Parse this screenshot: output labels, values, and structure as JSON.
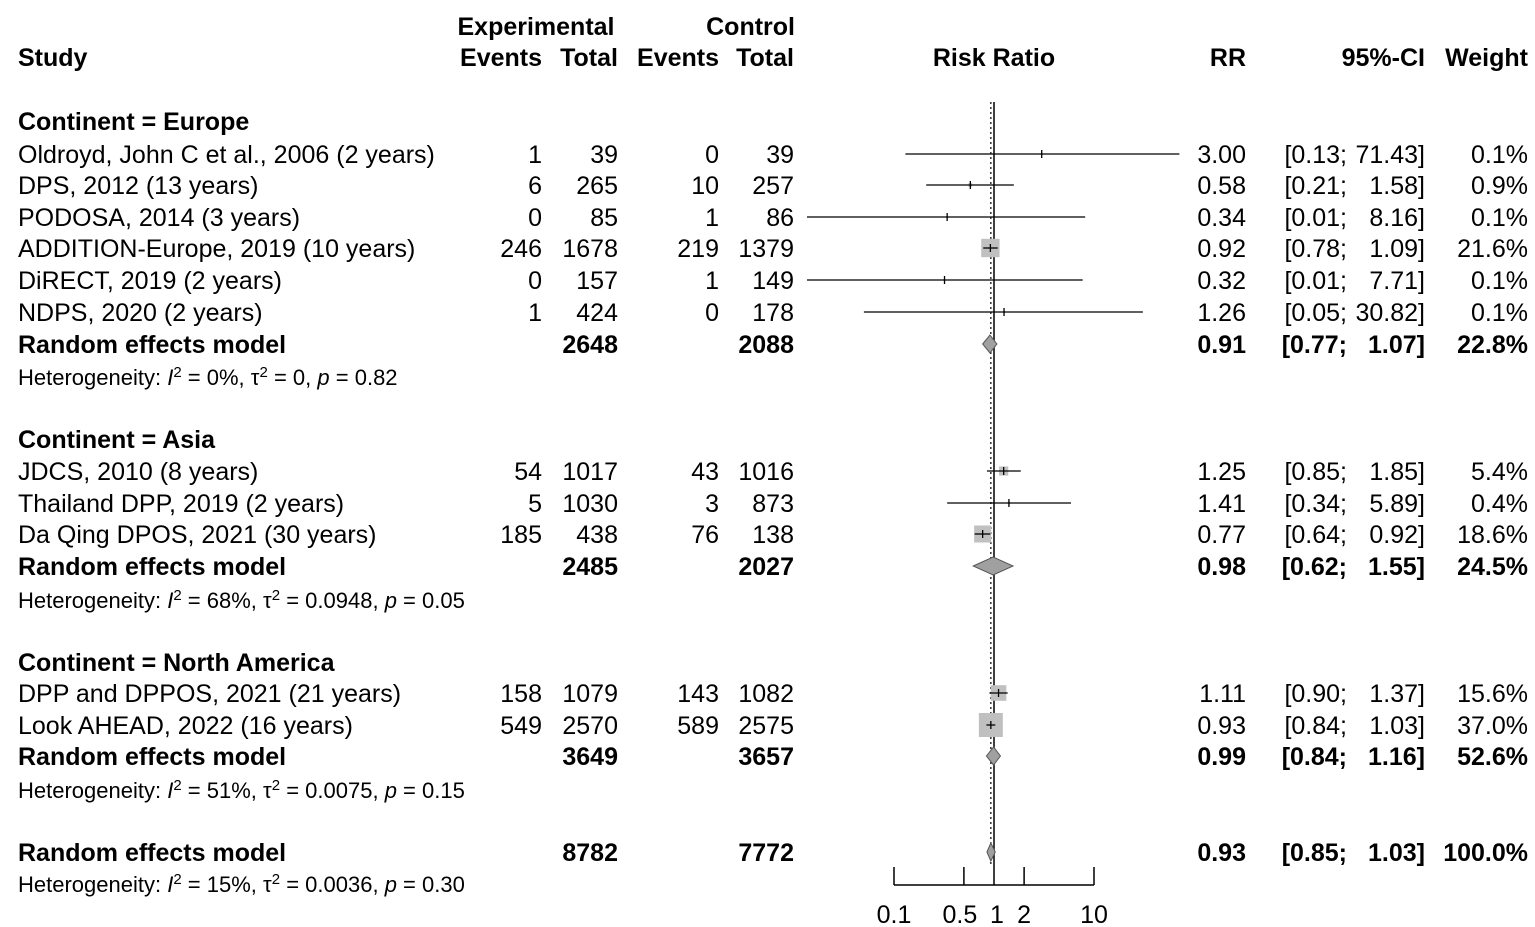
{
  "headers": {
    "study": "Study",
    "experimental": "Experimental",
    "control": "Control",
    "events": "Events",
    "total": "Total",
    "plot": "Risk Ratio",
    "rr": "RR",
    "ci": "95%-CI",
    "weight": "Weight"
  },
  "chart_data": {
    "type": "forest",
    "measure": "Risk Ratio",
    "x_scale": "log",
    "null_value": 1,
    "pooled_estimate": 0.93,
    "xticks": [
      0.1,
      0.5,
      1,
      2,
      10
    ],
    "xtick_labels": [
      "0.1",
      "0.5",
      "1",
      "2",
      "10"
    ],
    "groups": [
      {
        "label": "Continent = Europe",
        "studies": [
          {
            "name": "Oldroyd, John C et al., 2006 (2 years)",
            "e_events": "1",
            "e_total": "39",
            "c_events": "0",
            "c_total": "39",
            "rr": 3.0,
            "lo": 0.13,
            "hi": 71.43,
            "rr_text": "3.00",
            "ci_lo_text": "[0.13;",
            "ci_hi_text": "71.43]",
            "weight": 0.1,
            "weight_text": "0.1%"
          },
          {
            "name": "DPS, 2012 (13 years)",
            "e_events": "6",
            "e_total": "265",
            "c_events": "10",
            "c_total": "257",
            "rr": 0.58,
            "lo": 0.21,
            "hi": 1.58,
            "rr_text": "0.58",
            "ci_lo_text": "[0.21;",
            "ci_hi_text": "1.58]",
            "weight": 0.9,
            "weight_text": "0.9%"
          },
          {
            "name": "PODOSA, 2014 (3 years)",
            "e_events": "0",
            "e_total": "85",
            "c_events": "1",
            "c_total": "86",
            "rr": 0.34,
            "lo": 0.01,
            "hi": 8.16,
            "rr_text": "0.34",
            "ci_lo_text": "[0.01;",
            "ci_hi_text": "8.16]",
            "weight": 0.1,
            "weight_text": "0.1%"
          },
          {
            "name": "ADDITION-Europe, 2019 (10 years)",
            "e_events": "246",
            "e_total": "1678",
            "c_events": "219",
            "c_total": "1379",
            "rr": 0.92,
            "lo": 0.78,
            "hi": 1.09,
            "rr_text": "0.92",
            "ci_lo_text": "[0.78;",
            "ci_hi_text": "1.09]",
            "weight": 21.6,
            "weight_text": "21.6%"
          },
          {
            "name": "DiRECT, 2019 (2 years)",
            "e_events": "0",
            "e_total": "157",
            "c_events": "1",
            "c_total": "149",
            "rr": 0.32,
            "lo": 0.01,
            "hi": 7.71,
            "rr_text": "0.32",
            "ci_lo_text": "[0.01;",
            "ci_hi_text": "7.71]",
            "weight": 0.1,
            "weight_text": "0.1%"
          },
          {
            "name": "NDPS, 2020 (2 years)",
            "e_events": "1",
            "e_total": "424",
            "c_events": "0",
            "c_total": "178",
            "rr": 1.26,
            "lo": 0.05,
            "hi": 30.82,
            "rr_text": "1.26",
            "ci_lo_text": "[0.05;",
            "ci_hi_text": "30.82]",
            "weight": 0.1,
            "weight_text": "0.1%"
          }
        ],
        "summary": {
          "label": "Random effects model",
          "e_total": "2648",
          "c_total": "2088",
          "rr": 0.91,
          "lo": 0.77,
          "hi": 1.07,
          "rr_text": "0.91",
          "ci_lo_text": "[0.77;",
          "ci_hi_text": "1.07]",
          "weight_text": "22.8%"
        },
        "heterogeneity": {
          "prefix": "Heterogeneity: ",
          "i2": "0%",
          "tau2": "0",
          "p": "0.82"
        }
      },
      {
        "label": "Continent = Asia",
        "studies": [
          {
            "name": "JDCS, 2010 (8 years)",
            "e_events": "54",
            "e_total": "1017",
            "c_events": "43",
            "c_total": "1016",
            "rr": 1.25,
            "lo": 0.85,
            "hi": 1.85,
            "rr_text": "1.25",
            "ci_lo_text": "[0.85;",
            "ci_hi_text": "1.85]",
            "weight": 5.4,
            "weight_text": "5.4%"
          },
          {
            "name": "Thailand DPP, 2019 (2 years)",
            "e_events": "5",
            "e_total": "1030",
            "c_events": "3",
            "c_total": "873",
            "rr": 1.41,
            "lo": 0.34,
            "hi": 5.89,
            "rr_text": "1.41",
            "ci_lo_text": "[0.34;",
            "ci_hi_text": "5.89]",
            "weight": 0.4,
            "weight_text": "0.4%"
          },
          {
            "name": "Da Qing DPOS, 2021 (30 years)",
            "e_events": "185",
            "e_total": "438",
            "c_events": "76",
            "c_total": "138",
            "rr": 0.77,
            "lo": 0.64,
            "hi": 0.92,
            "rr_text": "0.77",
            "ci_lo_text": "[0.64;",
            "ci_hi_text": "0.92]",
            "weight": 18.6,
            "weight_text": "18.6%"
          }
        ],
        "summary": {
          "label": "Random effects model",
          "e_total": "2485",
          "c_total": "2027",
          "rr": 0.98,
          "lo": 0.62,
          "hi": 1.55,
          "rr_text": "0.98",
          "ci_lo_text": "[0.62;",
          "ci_hi_text": "1.55]",
          "weight_text": "24.5%"
        },
        "heterogeneity": {
          "prefix": "Heterogeneity: ",
          "i2": "68%",
          "tau2": "0.0948",
          "p": "0.05"
        }
      },
      {
        "label": "Continent = North America",
        "studies": [
          {
            "name": "DPP and DPPOS, 2021 (21 years)",
            "e_events": "158",
            "e_total": "1079",
            "c_events": "143",
            "c_total": "1082",
            "rr": 1.11,
            "lo": 0.9,
            "hi": 1.37,
            "rr_text": "1.11",
            "ci_lo_text": "[0.90;",
            "ci_hi_text": "1.37]",
            "weight": 15.6,
            "weight_text": "15.6%"
          },
          {
            "name": "Look AHEAD, 2022 (16 years)",
            "e_events": "549",
            "e_total": "2570",
            "c_events": "589",
            "c_total": "2575",
            "rr": 0.93,
            "lo": 0.84,
            "hi": 1.03,
            "rr_text": "0.93",
            "ci_lo_text": "[0.84;",
            "ci_hi_text": "1.03]",
            "weight": 37.0,
            "weight_text": "37.0%"
          }
        ],
        "summary": {
          "label": "Random effects model",
          "e_total": "3649",
          "c_total": "3657",
          "rr": 0.99,
          "lo": 0.84,
          "hi": 1.16,
          "rr_text": "0.99",
          "ci_lo_text": "[0.84;",
          "ci_hi_text": "1.16]",
          "weight_text": "52.6%"
        },
        "heterogeneity": {
          "prefix": "Heterogeneity: ",
          "i2": "51%",
          "tau2": "0.0075",
          "p": "0.15"
        }
      }
    ],
    "overall": {
      "summary": {
        "label": "Random effects model",
        "e_total": "8782",
        "c_total": "7772",
        "rr": 0.93,
        "lo": 0.85,
        "hi": 1.03,
        "rr_text": "0.93",
        "ci_lo_text": "[0.85;",
        "ci_hi_text": "1.03]",
        "weight_text": "100.0%"
      },
      "heterogeneity": {
        "prefix": "Heterogeneity: ",
        "i2": "15%",
        "tau2": "0.0036",
        "p": "0.30"
      }
    },
    "colors": {
      "square": "#c0c0c0",
      "diamond": "#a0a0a0",
      "line": "#000000"
    }
  }
}
